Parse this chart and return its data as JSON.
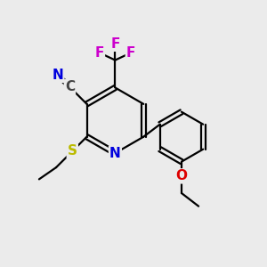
{
  "background_color": "#ebebeb",
  "bond_color": "#000000",
  "bond_width": 1.6,
  "atom_colors": {
    "N": "#0000dd",
    "S": "#bbbb00",
    "O": "#dd0000",
    "F": "#cc00cc",
    "C": "#444444"
  },
  "fs": 11,
  "fs_small": 10
}
